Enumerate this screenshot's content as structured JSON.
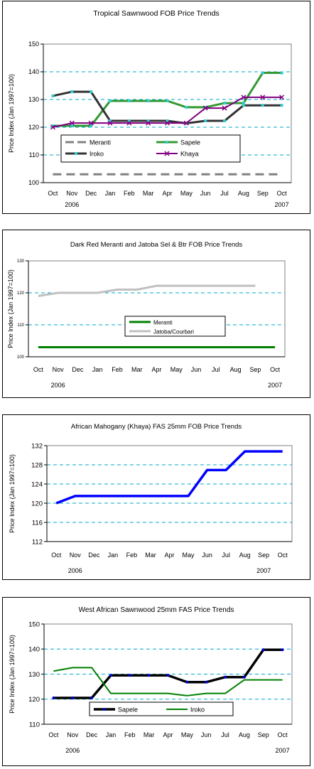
{
  "chart_data": [
    {
      "type": "line",
      "title": "Tropical Sawnwood FOB Price Trends",
      "ylabel": "Price Index (Jan 1997=100)",
      "xlabel": "",
      "categories": [
        "Oct",
        "Nov",
        "Dec",
        "Jan",
        "Feb",
        "Mar",
        "Apr",
        "May",
        "Jun",
        "Jul",
        "Aug",
        "Sep",
        "Oct"
      ],
      "year_labels": [
        "2006",
        "2007"
      ],
      "ylim": [
        100,
        150
      ],
      "yticks": [
        "100",
        "110",
        "120",
        "130",
        "140",
        "150"
      ],
      "grid": "dashed horizontal",
      "legend_placement": "center",
      "series": [
        {
          "name": "Meranti",
          "color": "#808080",
          "values": [
            103,
            103,
            103,
            103,
            103,
            103,
            103,
            103,
            103,
            103,
            103,
            103,
            103
          ]
        },
        {
          "name": "Sapele",
          "color": "#339933",
          "values": [
            120.5,
            120.5,
            120.5,
            129.5,
            129.5,
            129.5,
            129.5,
            127.2,
            127.2,
            128.7,
            128.7,
            139.6,
            139.6
          ]
        },
        {
          "name": "Iroko",
          "color": "#333333",
          "values": [
            131.3,
            132.8,
            132.8,
            122.3,
            122.3,
            122.3,
            122.3,
            121.4,
            122.3,
            122.3,
            127.9,
            127.9,
            127.9
          ]
        },
        {
          "name": "Khaya",
          "color": "#800080",
          "values": [
            120,
            121.5,
            121.5,
            121.5,
            121.5,
            121.5,
            121.5,
            121.5,
            126.9,
            126.9,
            130.8,
            130.8,
            130.8
          ]
        }
      ]
    },
    {
      "type": "line",
      "title": "Dark Red Meranti and Jatoba Sel & Btr FOB Price Trends",
      "ylabel": "Price Index (Jan 1997=100)",
      "xlabel": "",
      "categories": [
        "Oct",
        "Nov",
        "Dec",
        "Jan",
        "Feb",
        "Mar",
        "Apr",
        "May",
        "Jun",
        "Jul",
        "Aug",
        "Sep",
        "Oct"
      ],
      "year_labels": [
        "2006",
        "2007"
      ],
      "ylim": [
        100,
        130
      ],
      "yticks": [
        "100",
        "110",
        "120",
        "130"
      ],
      "grid": "dashed horizontal",
      "legend_placement": "center",
      "series": [
        {
          "name": "Meranti",
          "color": "#008000",
          "values": [
            103,
            103,
            103,
            103,
            103,
            103,
            103,
            103,
            103,
            103,
            103,
            103,
            103
          ]
        },
        {
          "name": "Jatoba/Courbari",
          "color": "#c0c0c0",
          "values": [
            119,
            120,
            120,
            120,
            121,
            121,
            122.2,
            122.2,
            122.2,
            122.2,
            122.2,
            122.2,
            null
          ]
        }
      ]
    },
    {
      "type": "line",
      "title": "African Mahogany (Khaya) FAS 25mm FOB Price Trends",
      "ylabel": "Price Index (Jan 1997=100)",
      "xlabel": "",
      "categories": [
        "Oct",
        "Nov",
        "Dec",
        "Jan",
        "Feb",
        "Mar",
        "Apr",
        "May",
        "Jun",
        "Jul",
        "Aug",
        "Sep",
        "Oct"
      ],
      "year_labels": [
        "2006",
        "2007"
      ],
      "ylim": [
        112,
        132
      ],
      "yticks": [
        "112",
        "116",
        "120",
        "124",
        "128",
        "132"
      ],
      "grid": "dashed horizontal",
      "legend_placement": "none",
      "series": [
        {
          "color": "#0000ff",
          "values": [
            120,
            121.5,
            121.5,
            121.5,
            121.5,
            121.5,
            121.5,
            121.5,
            126.9,
            126.9,
            130.8,
            130.8,
            130.8
          ]
        }
      ]
    },
    {
      "type": "line",
      "title": "West  African Sawnwood 25mm FAS Price Trends",
      "ylabel": "Price Index (Jan 1997=100)",
      "xlabel": "",
      "categories": [
        "Oct",
        "Nov",
        "Dec",
        "Jan",
        "Feb",
        "Mar",
        "Apr",
        "May",
        "Jun",
        "Jul",
        "Aug",
        "Sep",
        "Oct"
      ],
      "year_labels": [
        "2006",
        "2007"
      ],
      "ylim": [
        110,
        150
      ],
      "yticks": [
        "110",
        "120",
        "130",
        "140",
        "150"
      ],
      "grid": "dashed horizontal",
      "legend_placement": "bottom-center",
      "series": [
        {
          "name": "Sapele",
          "color": "#000000",
          "values": [
            120.5,
            120.5,
            120.5,
            129.5,
            129.5,
            129.5,
            129.5,
            126.8,
            126.8,
            128.8,
            128.8,
            139.7,
            139.7
          ]
        },
        {
          "name": "Iroko",
          "color": "#008000",
          "values": [
            131.2,
            132.6,
            132.6,
            122.3,
            122.3,
            122.3,
            122.3,
            121.4,
            122.3,
            122.3,
            127.7,
            127.7,
            127.7
          ]
        }
      ]
    }
  ]
}
